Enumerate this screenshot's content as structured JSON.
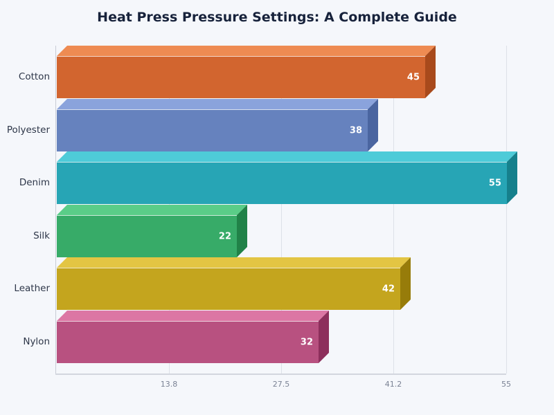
{
  "title": "Heat Press Pressure Settings: A Complete Guide",
  "chart_data": {
    "type": "bar",
    "orientation": "horizontal",
    "title": "Heat Press Pressure Settings: A Complete Guide",
    "categories": [
      "Cotton",
      "Polyester",
      "Denim",
      "Silk",
      "Leather",
      "Nylon"
    ],
    "values": [
      45,
      38,
      55,
      22,
      42,
      32
    ],
    "value_labels": [
      "45",
      "38",
      "55",
      "22",
      "42",
      "32"
    ],
    "xlabel": "",
    "ylabel": "",
    "xlim": [
      0,
      55
    ],
    "xticks": [
      13.8,
      27.5,
      41.2,
      55
    ],
    "xtick_labels": [
      "13.8",
      "27.5",
      "41.2",
      "55"
    ],
    "grid": "vertical",
    "legend": "none",
    "style": "3d-bars",
    "colors": {
      "Cotton": {
        "front": "#d2652f",
        "top": "#ee8b52",
        "side": "#a84a1c"
      },
      "Polyester": {
        "front": "#6682be",
        "top": "#8aa3dc",
        "side": "#4a65a0"
      },
      "Denim": {
        "front": "#27a5b5",
        "top": "#4ecbd8",
        "side": "#16808c"
      },
      "Silk": {
        "front": "#37ab68",
        "top": "#5acd88",
        "side": "#218248"
      },
      "Leather": {
        "front": "#c4a51e",
        "top": "#e3c543",
        "side": "#977c0a"
      },
      "Nylon": {
        "front": "#b85180",
        "top": "#dc76a4",
        "side": "#8d2f5c"
      }
    }
  }
}
